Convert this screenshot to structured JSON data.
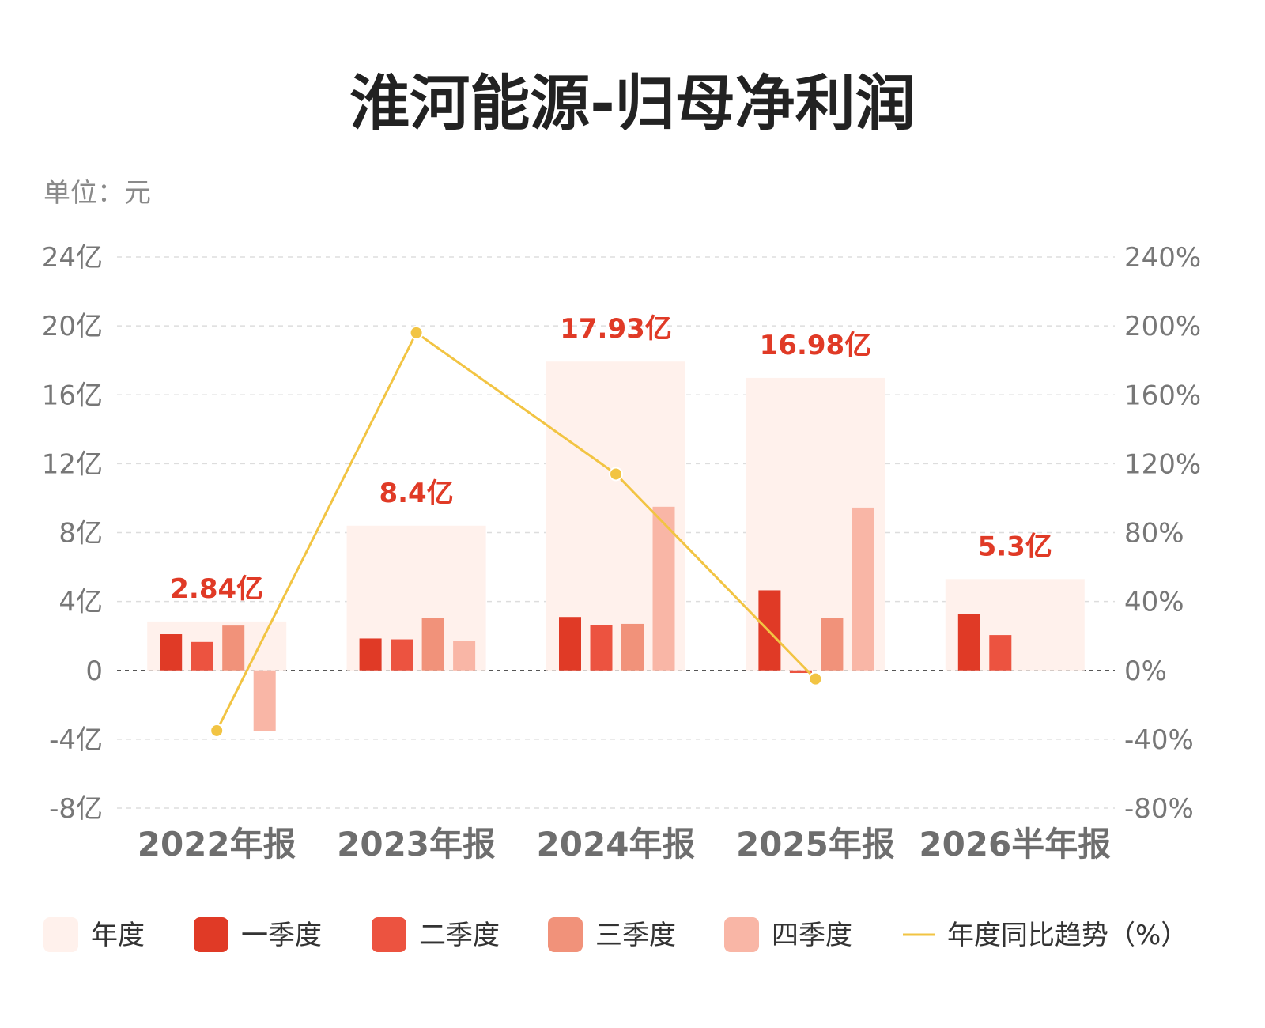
{
  "chart_data": {
    "type": "bar",
    "title": "淮河能源-归母净利润",
    "unit_label": "单位：元",
    "categories": [
      "2022年报",
      "2023年报",
      "2024年报",
      "2025年报",
      "2026半年报"
    ],
    "annual": {
      "name": "年度",
      "values": [
        2.84,
        8.4,
        17.93,
        16.98,
        5.3
      ],
      "labels": [
        "2.84亿",
        "8.4亿",
        "17.93亿",
        "16.98亿",
        "5.3亿"
      ]
    },
    "series": [
      {
        "name": "一季度",
        "values": [
          2.1,
          1.85,
          3.1,
          4.65,
          3.25
        ]
      },
      {
        "name": "二季度",
        "values": [
          1.65,
          1.8,
          2.65,
          -0.15,
          2.05
        ]
      },
      {
        "name": "三季度",
        "values": [
          2.6,
          3.05,
          2.7,
          3.05,
          null
        ]
      },
      {
        "name": "四季度",
        "values": [
          -3.5,
          1.7,
          9.5,
          9.45,
          null
        ]
      }
    ],
    "trend": {
      "name": "年度同比趋势（%）",
      "values": [
        -35,
        196,
        114,
        -5
      ]
    },
    "ylim_left": [
      -8,
      24
    ],
    "ylim_right": [
      -80,
      240
    ],
    "yticks_left": [
      "-8亿",
      "-4亿",
      "0",
      "4亿",
      "8亿",
      "12亿",
      "16亿",
      "20亿",
      "24亿"
    ],
    "yticks_right": [
      "-80%",
      "-40%",
      "0%",
      "40%",
      "80%",
      "120%",
      "160%",
      "200%",
      "240%"
    ],
    "legend_position": "bottom",
    "grid": true,
    "colors": {
      "annual": "#fff1ec",
      "q1": "#e03a26",
      "q2": "#ec5340",
      "q3": "#f1927a",
      "q4": "#f9b6a6",
      "trend": "#f2c443",
      "label": "#e03a26"
    }
  }
}
